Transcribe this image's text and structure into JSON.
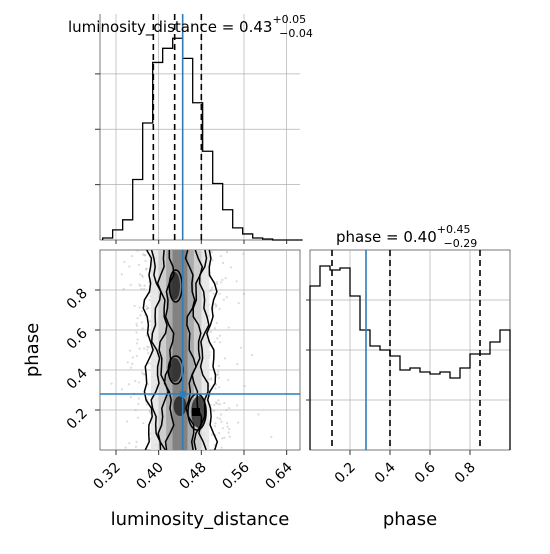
{
  "chart_data": {
    "type": "corner",
    "parameters": [
      "luminosity_distance",
      "phase"
    ],
    "truth": {
      "luminosity_distance": 0.445,
      "phase": 0.28
    },
    "colors": {
      "truth": "#2f7cb6",
      "hist": "#000000",
      "grid": "#b0b0b0",
      "background": "#ffffff"
    },
    "grid": true,
    "panels": {
      "dist_hist": {
        "title_main": "luminosity_distance = 0.43",
        "title_sup": "+0.05",
        "title_sub": "−0.04",
        "xlim": [
          0.29,
          0.665
        ],
        "quantiles": [
          0.39,
          0.43,
          0.48
        ],
        "bin_edges": [
          0.295,
          0.3137,
          0.3325,
          0.3513,
          0.37,
          0.3888,
          0.4075,
          0.4263,
          0.445,
          0.4638,
          0.4825,
          0.5013,
          0.52,
          0.5388,
          0.5575,
          0.5763,
          0.595,
          0.6138,
          0.6325,
          0.6513,
          0.67
        ],
        "counts": [
          0.01,
          0.05,
          0.1,
          0.3,
          0.58,
          0.88,
          0.95,
          1.0,
          0.9,
          0.68,
          0.44,
          0.28,
          0.15,
          0.06,
          0.03,
          0.01,
          0.005,
          0,
          0,
          0
        ],
        "ylim": [
          0,
          1.12
        ]
      },
      "phase_hist": {
        "title_main": "phase = 0.40",
        "title_sup": "+0.45",
        "title_sub": "−0.29",
        "xlim": [
          0.0,
          1.0
        ],
        "quantiles": [
          0.11,
          0.4,
          0.85
        ],
        "bin_edges": [
          0.0,
          0.05,
          0.1,
          0.15,
          0.2,
          0.25,
          0.3,
          0.35,
          0.4,
          0.45,
          0.5,
          0.55,
          0.6,
          0.65,
          0.7,
          0.75,
          0.8,
          0.85,
          0.9,
          0.95,
          1.0
        ],
        "counts": [
          0.82,
          0.92,
          0.9,
          0.91,
          0.77,
          0.6,
          0.52,
          0.5,
          0.47,
          0.4,
          0.41,
          0.39,
          0.38,
          0.39,
          0.36,
          0.41,
          0.48,
          0.48,
          0.54,
          0.6
        ],
        "ylim": [
          0,
          1.0
        ]
      },
      "joint": {
        "xlim": [
          0.29,
          0.665
        ],
        "ylim": [
          0.0,
          1.0
        ],
        "contour_levels": 4
      }
    },
    "xticks_dist": [
      "0.32",
      "0.40",
      "0.48",
      "0.56",
      "0.64"
    ],
    "xticks_dist_values": [
      0.32,
      0.4,
      0.48,
      0.56,
      0.64
    ],
    "yticks_phase": [
      "0.2",
      "0.4",
      "0.6",
      "0.8"
    ],
    "yticks_phase_values": [
      0.2,
      0.4,
      0.6,
      0.8
    ],
    "xticks_phase": [
      "0.2",
      "0.4",
      "0.6",
      "0.8"
    ],
    "xticks_phase_values": [
      0.2,
      0.4,
      0.6,
      0.8
    ],
    "xlabel_dist": "luminosity_distance",
    "xlabel_phase": "phase",
    "ylabel_phase": "phase"
  }
}
